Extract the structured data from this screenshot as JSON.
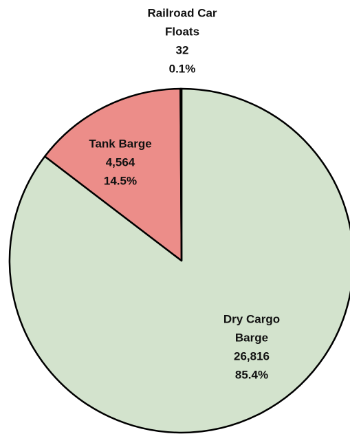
{
  "chart_data": {
    "type": "pie",
    "categories": [
      [
        "Dry Cargo",
        "Barge"
      ],
      [
        "Tank Barge"
      ],
      [
        "Railroad Car",
        "Floats"
      ]
    ],
    "values": [
      26816,
      4564,
      32
    ],
    "value_labels": [
      "26,816",
      "4,564",
      "32"
    ],
    "percents": [
      85.4,
      14.5,
      0.1
    ],
    "percent_labels": [
      "85.4%",
      "14.5%",
      "0.1%"
    ],
    "colors": [
      "#d3e3cd",
      "#ec8d89",
      "#1f2a8c"
    ]
  }
}
